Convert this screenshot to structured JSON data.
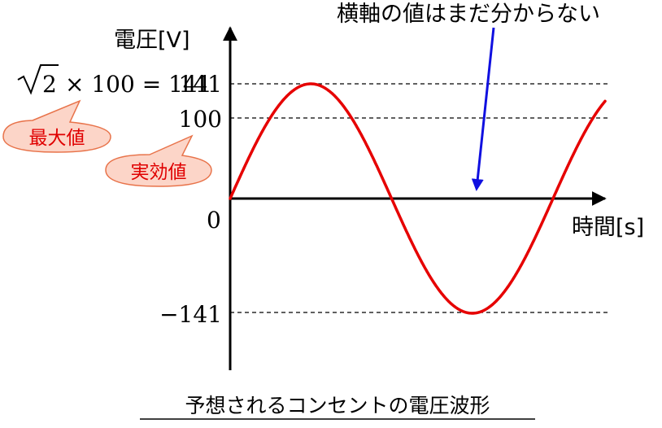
{
  "annotation": "横軸の値はまだ分からない",
  "caption": "予想されるコンセントの電圧波形",
  "axes": {
    "y_label": "電圧[V]",
    "x_label": "時間[s]",
    "origin_label": "0"
  },
  "ticks": {
    "y_141": "141",
    "y_100": "100",
    "y_neg141": "−141"
  },
  "formula": {
    "sqrt_arg": "2",
    "rest": "× 100 = 141"
  },
  "callouts": {
    "max_value": "最大値",
    "rms_value": "実効値"
  },
  "colors": {
    "wave": "#e60000",
    "arrow": "#1010e0",
    "callout_fill": "#fcd5c8",
    "callout_stroke": "#e8734a",
    "callout_text": "#e00000"
  },
  "chart_data": {
    "type": "line",
    "function": "sine",
    "amplitude": 141,
    "rms": 100,
    "ylim": [
      -141,
      141
    ],
    "y_ticks": [
      141,
      100,
      0,
      -141
    ],
    "x_units": "s",
    "y_units": "V"
  }
}
